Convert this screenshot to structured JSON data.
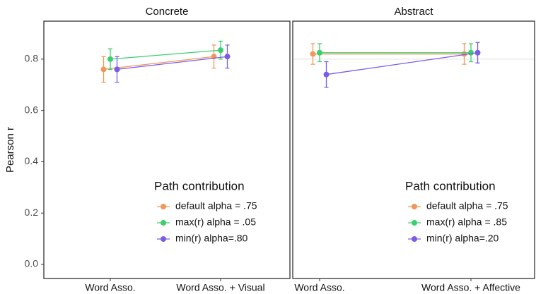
{
  "chart_data": [
    {
      "type": "errorbar",
      "title": "Concrete",
      "ylabel": "Pearson r",
      "categories": [
        "Word Asso.",
        "Word Asso. + Visual"
      ],
      "ylim": [
        -0.055,
        0.948
      ],
      "yticks": [
        {
          "value": 0,
          "label": "0.0"
        },
        0.2,
        0.4,
        0.6,
        0.8
      ],
      "legend_title": "Path contribution",
      "legend": "bottom right",
      "series": [
        {
          "name": "default alpha = .75",
          "color": "#f0975a",
          "values": [
            0.76,
            0.81
          ],
          "errors": [
            0.05,
            0.045
          ]
        },
        {
          "name": "max(r) alpha = .05",
          "color": "#3ccf6e",
          "values": [
            0.8,
            0.835
          ],
          "errors": [
            0.04,
            0.035
          ]
        },
        {
          "name": "min(r) alpha=.80",
          "color": "#7b5ce8",
          "values": [
            0.76,
            0.81
          ],
          "errors": [
            0.05,
            0.045
          ]
        }
      ]
    },
    {
      "type": "errorbar",
      "title": "Abstract",
      "categories": [
        "Word Asso.",
        "Word Asso. + Affective"
      ],
      "ylim": [
        -0.055,
        0.948
      ],
      "hline": 0.8,
      "legend_title": "Path contribution",
      "legend": "bottom right",
      "series": [
        {
          "name": "default alpha = .75",
          "color": "#f0975a",
          "values": [
            0.82,
            0.82
          ],
          "errors": [
            0.04,
            0.04
          ]
        },
        {
          "name": "max(r) alpha = .85",
          "color": "#3ccf6e",
          "values": [
            0.825,
            0.825
          ],
          "errors": [
            0.035,
            0.035
          ]
        },
        {
          "name": "min(r) alpha=.20",
          "color": "#7b5ce8",
          "values": [
            0.74,
            0.825
          ],
          "errors": [
            0.05,
            0.04
          ]
        }
      ]
    }
  ]
}
